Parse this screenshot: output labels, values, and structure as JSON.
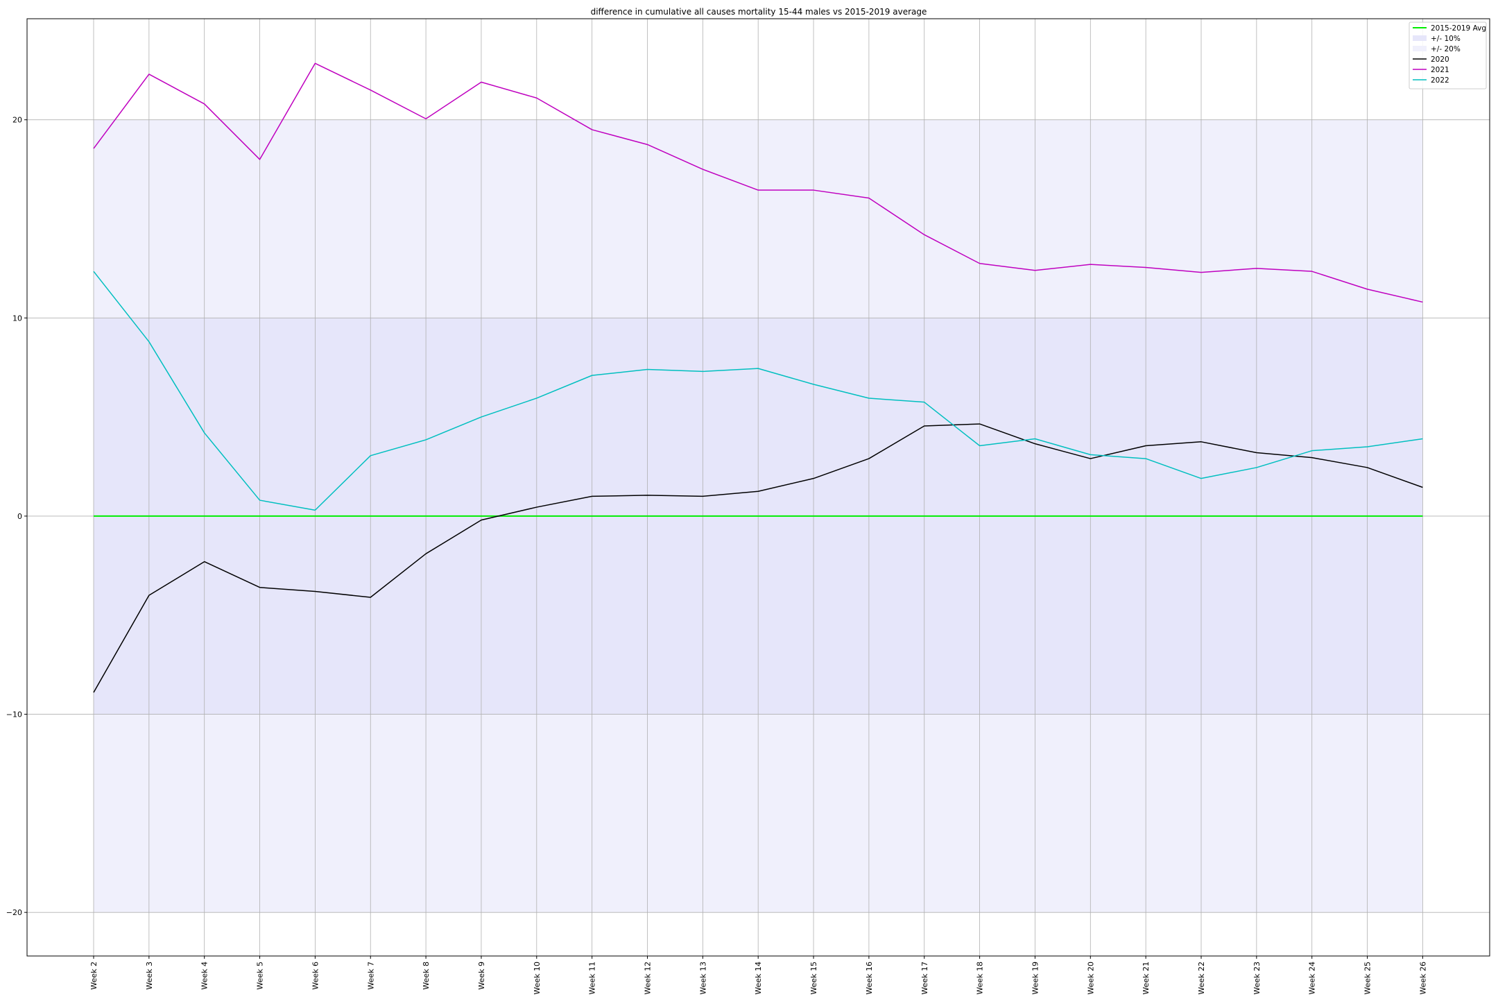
{
  "chart_data": {
    "type": "line",
    "title": "difference in cumulative all causes mortality 15-44 males vs 2015-2019 average",
    "xlabel": "",
    "ylabel": "",
    "categories": [
      "Week 2",
      "Week 3",
      "Week 4",
      "Week 5",
      "Week 6",
      "Week 7",
      "Week 8",
      "Week 9",
      "Week 10",
      "Week 11",
      "Week 12",
      "Week 13",
      "Week 14",
      "Week 15",
      "Week 16",
      "Week 17",
      "Week 18",
      "Week 19",
      "Week 20",
      "Week 21",
      "Week 22",
      "Week 23",
      "Week 24",
      "Week 25",
      "Week 26"
    ],
    "ylim": [
      -22.2,
      25.1
    ],
    "yticks": [
      -20,
      -10,
      0,
      10,
      20
    ],
    "ytick_labels": [
      "−20",
      "−10",
      "0",
      "10",
      "20"
    ],
    "grid": true,
    "legend_position": "top-right",
    "bands": [
      {
        "name": "+/- 10%",
        "low": -10,
        "high": 10,
        "color": "#e6e6fa"
      },
      {
        "name": "+/- 20%",
        "low": -20,
        "high": 20,
        "color": "#f0f0fc"
      }
    ],
    "baseline": {
      "name": "2015-2019 Avg",
      "value": 0,
      "color": "#00ee00"
    },
    "series": [
      {
        "name": "2020",
        "color": "#000000",
        "values": [
          -8.9,
          -4.0,
          -2.3,
          -3.6,
          -3.8,
          -4.1,
          -1.9,
          -0.2,
          0.45,
          1.0,
          1.05,
          1.0,
          1.25,
          1.9,
          2.9,
          4.55,
          4.65,
          3.65,
          2.9,
          3.55,
          3.75,
          3.2,
          2.95,
          2.45,
          1.45
        ]
      },
      {
        "name": "2021",
        "color": "#bf00bf",
        "values": [
          18.55,
          22.3,
          20.8,
          18.0,
          22.85,
          21.5,
          20.05,
          21.9,
          21.1,
          19.5,
          18.75,
          17.5,
          16.45,
          16.45,
          16.05,
          14.2,
          12.75,
          12.4,
          12.7,
          12.55,
          12.3,
          12.5,
          12.35,
          11.45,
          10.8
        ]
      },
      {
        "name": "2022",
        "color": "#00bfbf",
        "values": [
          12.35,
          8.8,
          4.2,
          0.8,
          0.3,
          3.05,
          3.85,
          5.0,
          5.95,
          7.1,
          7.4,
          7.3,
          7.45,
          6.65,
          5.95,
          5.75,
          3.55,
          3.9,
          3.1,
          2.9,
          1.9,
          2.45,
          3.3,
          3.5,
          3.9
        ]
      }
    ]
  }
}
